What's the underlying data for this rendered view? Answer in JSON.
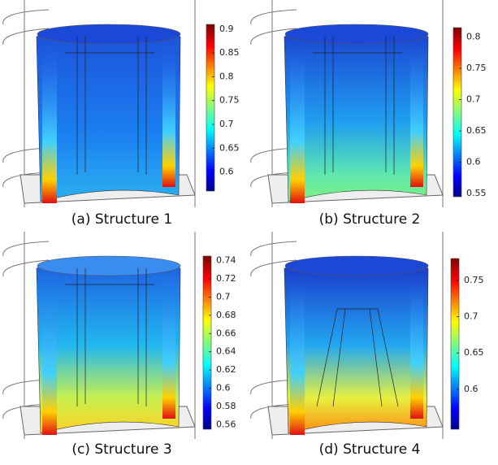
{
  "panels": [
    {
      "caption": "(a) Structure 1",
      "colorbar": {
        "lim": [
          0.56,
          0.91
        ],
        "ticks": [
          0.6,
          0.65,
          0.7,
          0.75,
          0.8,
          0.85,
          0.9
        ]
      }
    },
    {
      "caption": "(b) Structure 2",
      "colorbar": {
        "lim": [
          0.545,
          0.815
        ],
        "ticks": [
          0.55,
          0.6,
          0.65,
          0.7,
          0.75,
          0.8
        ]
      }
    },
    {
      "caption": "(c) Structure 3",
      "colorbar": {
        "lim": [
          0.555,
          0.745
        ],
        "ticks": [
          0.56,
          0.58,
          0.6,
          0.62,
          0.64,
          0.66,
          0.68,
          0.7,
          0.72,
          0.74
        ]
      }
    },
    {
      "caption": "(d) Structure 4",
      "colorbar": {
        "lim": [
          0.545,
          0.78
        ],
        "ticks": [
          0.6,
          0.65,
          0.7,
          0.75
        ]
      }
    }
  ]
}
